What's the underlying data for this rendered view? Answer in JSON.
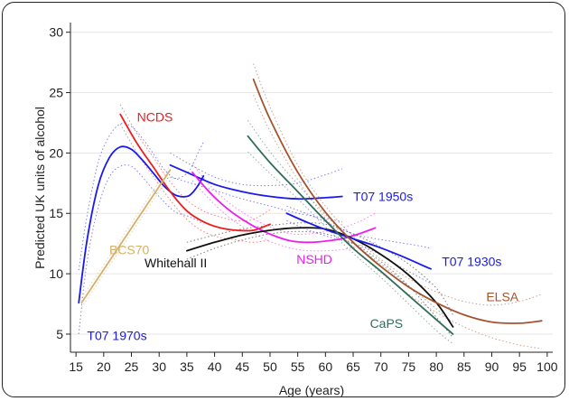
{
  "chart_data": {
    "type": "line",
    "xlabel": "Age (years)",
    "ylabel": "Predicted UK units of alcohol",
    "xlim": [
      14,
      101
    ],
    "ylim": [
      3.5,
      30.8
    ],
    "x_ticks": [
      15,
      20,
      25,
      30,
      35,
      40,
      45,
      50,
      55,
      60,
      65,
      70,
      75,
      80,
      85,
      90,
      95,
      100
    ],
    "y_ticks": [
      5,
      10,
      15,
      20,
      25,
      30
    ],
    "grid": "horizontal",
    "legend": "none",
    "series": [
      {
        "name": "T07 1970s",
        "color": "#1a1aee",
        "x": [
          15.5,
          17,
          19,
          21,
          23,
          25,
          27,
          29,
          31,
          33,
          35,
          36,
          37,
          38
        ],
        "y": [
          7.6,
          12.8,
          17.3,
          19.6,
          20.5,
          20.3,
          19.4,
          18.3,
          17.2,
          16.5,
          16.4,
          16.7,
          17.3,
          18.1
        ],
        "lower": [
          5.0,
          11.0,
          15.5,
          18.0,
          18.9,
          18.9,
          18.0,
          16.9,
          15.9,
          15.1,
          14.8,
          14.6,
          14.4,
          14.1
        ],
        "upper": [
          10.3,
          14.8,
          19.2,
          21.4,
          22.4,
          22.2,
          21.2,
          19.9,
          18.6,
          17.9,
          18.3,
          19.0,
          20.0,
          20.9
        ]
      },
      {
        "name": "NCDS",
        "color": "#ee1c1c",
        "x": [
          23,
          26,
          29,
          32,
          35,
          38,
          41,
          44,
          47,
          50
        ],
        "y": [
          23.2,
          20.8,
          18.8,
          16.8,
          15.2,
          14.3,
          13.8,
          13.6,
          13.6,
          14.1
        ],
        "lower": [
          22.4,
          20.0,
          18.0,
          16.1,
          14.5,
          13.5,
          13.0,
          12.8,
          12.6,
          12.8
        ],
        "upper": [
          24.0,
          21.6,
          19.6,
          17.6,
          16.1,
          15.2,
          14.7,
          14.4,
          14.5,
          15.3
        ]
      },
      {
        "name": "BCS70",
        "color": "#d4b06a",
        "x": [
          16,
          32
        ],
        "y": [
          7.6,
          18.6
        ],
        "lower": [
          7.2,
          18.2
        ],
        "upper": [
          8.0,
          19.0
        ]
      },
      {
        "name": "T07 1950s",
        "color": "#1a1aee",
        "x": [
          32,
          35,
          40,
          45,
          50,
          55,
          60,
          63
        ],
        "y": [
          19.0,
          18.4,
          17.4,
          16.8,
          16.4,
          16.2,
          16.3,
          16.4
        ],
        "lower": [
          18.0,
          17.6,
          16.9,
          16.2,
          15.6,
          15.0,
          14.6,
          14.3
        ],
        "upper": [
          20.0,
          19.2,
          18.0,
          17.4,
          17.3,
          17.5,
          18.2,
          18.7
        ]
      },
      {
        "name": "NSHD",
        "color": "#ee1cee",
        "x": [
          36,
          39,
          42,
          45,
          48,
          51,
          54,
          57,
          60,
          63,
          66,
          69
        ],
        "y": [
          18.4,
          16.8,
          15.5,
          14.5,
          13.7,
          13.1,
          12.7,
          12.6,
          12.7,
          12.9,
          13.3,
          13.8
        ],
        "lower": [
          17.7,
          16.2,
          14.9,
          13.9,
          13.1,
          12.5,
          12.1,
          11.9,
          11.9,
          12.0,
          12.3,
          12.6
        ],
        "upper": [
          19.1,
          17.4,
          16.1,
          15.1,
          14.3,
          13.7,
          13.3,
          13.3,
          13.5,
          13.8,
          14.3,
          15.0
        ]
      },
      {
        "name": "Whitehall II",
        "color": "#111111",
        "x": [
          35,
          40,
          45,
          50,
          55,
          60,
          65,
          70,
          75,
          80,
          83
        ],
        "y": [
          11.9,
          12.6,
          13.2,
          13.6,
          13.8,
          13.7,
          12.9,
          11.6,
          9.9,
          7.6,
          5.6
        ],
        "lower": [
          11.2,
          12.1,
          12.8,
          13.3,
          13.5,
          13.3,
          12.5,
          11.0,
          9.0,
          6.4,
          4.7
        ],
        "upper": [
          12.6,
          13.2,
          13.7,
          14.0,
          14.2,
          14.1,
          13.3,
          12.2,
          10.8,
          8.8,
          6.6
        ]
      },
      {
        "name": "T07 1930s",
        "color": "#1a1aee",
        "x": [
          53,
          57,
          61,
          65,
          69,
          73,
          77,
          79
        ],
        "y": [
          15.0,
          14.2,
          13.5,
          12.9,
          12.3,
          11.6,
          10.8,
          10.4
        ],
        "lower": [
          14.4,
          13.6,
          13.0,
          12.5,
          11.8,
          10.7,
          9.7,
          9.2
        ],
        "upper": [
          15.6,
          14.9,
          14.1,
          13.3,
          12.9,
          12.6,
          12.3,
          12.1
        ]
      },
      {
        "name": "CaPS",
        "color": "#2f6d5a",
        "x": [
          46,
          50,
          55,
          60,
          65,
          70,
          75,
          80,
          83
        ],
        "y": [
          21.4,
          19.2,
          16.8,
          14.4,
          12.1,
          10.2,
          8.2,
          6.2,
          5.0
        ],
        "lower": [
          20.1,
          18.3,
          16.2,
          13.9,
          11.7,
          9.7,
          7.5,
          5.3,
          4.2
        ],
        "upper": [
          22.7,
          20.1,
          17.4,
          14.9,
          12.6,
          10.8,
          9.0,
          7.1,
          5.9
        ]
      },
      {
        "name": "ELSA",
        "color": "#a5532e",
        "x": [
          47,
          50,
          55,
          60,
          65,
          70,
          75,
          80,
          85,
          90,
          95,
          99
        ],
        "y": [
          26.1,
          22.8,
          18.4,
          15.1,
          12.6,
          10.6,
          8.9,
          7.6,
          6.6,
          6.0,
          5.9,
          6.1
        ],
        "lower": [
          24.8,
          21.8,
          17.8,
          14.6,
          12.2,
          10.1,
          8.3,
          6.8,
          5.6,
          4.7,
          4.1,
          3.8
        ],
        "upper": [
          27.4,
          23.8,
          19.0,
          15.6,
          13.1,
          11.2,
          9.6,
          8.5,
          7.7,
          7.4,
          7.7,
          8.3
        ]
      }
    ],
    "annotations": [
      {
        "text": "NCDS",
        "color": "#ee1c1c",
        "x": 26,
        "y": 23.0,
        "anchor": "start"
      },
      {
        "text": "T07 1950s",
        "color": "#1a1aee",
        "x": 65,
        "y": 16.4,
        "anchor": "start"
      },
      {
        "text": "BCS70",
        "color": "#d4b06a",
        "x": 21,
        "y": 12.0,
        "anchor": "start"
      },
      {
        "text": "Whitehall II",
        "color": "#111111",
        "x": 33,
        "y": 10.9,
        "anchor": "middle"
      },
      {
        "text": "NSHD",
        "color": "#ee1cee",
        "x": 58,
        "y": 11.2,
        "anchor": "middle"
      },
      {
        "text": "T07 1930s",
        "color": "#1a1aee",
        "x": 81,
        "y": 11.0,
        "anchor": "start"
      },
      {
        "text": "ELSA",
        "color": "#a5532e",
        "x": 89,
        "y": 8.1,
        "anchor": "start"
      },
      {
        "text": "CaPS",
        "color": "#2f6d5a",
        "x": 71,
        "y": 5.9,
        "anchor": "middle"
      },
      {
        "text": "T07 1970s",
        "color": "#1a1aee",
        "x": 17,
        "y": 4.9,
        "anchor": "start"
      }
    ]
  }
}
